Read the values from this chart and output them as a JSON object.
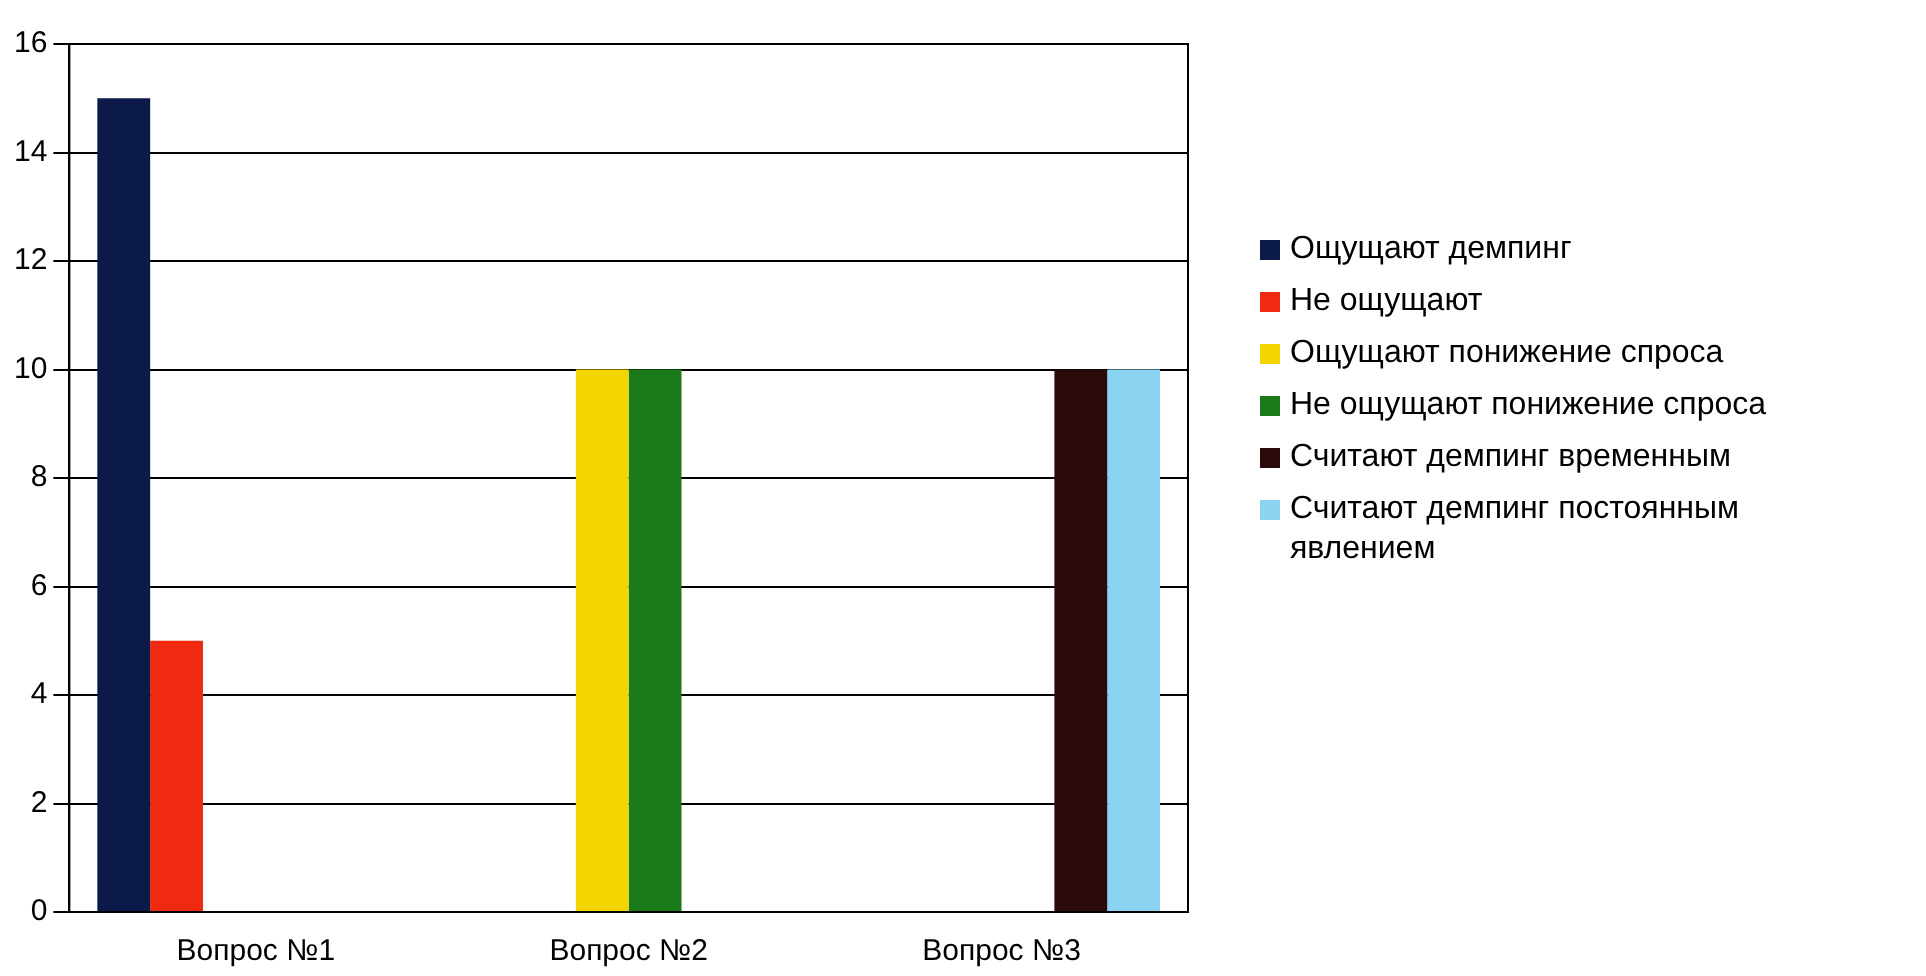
{
  "chart_data": {
    "type": "bar",
    "categories": [
      "Вопрос №1",
      "Вопрос №2",
      "Вопрос №3"
    ],
    "series": [
      {
        "name": "Ощущают демпинг",
        "color": "#0c1a4a",
        "values": [
          15,
          null,
          null
        ]
      },
      {
        "name": "Не ощущают",
        "color": "#f02a10",
        "values": [
          5,
          null,
          null
        ]
      },
      {
        "name": "Ощущают понижение спроса",
        "color": "#f2d400",
        "values": [
          null,
          10,
          null
        ]
      },
      {
        "name": "Не ощущают понижение спроса",
        "color": "#1a7a1a",
        "values": [
          null,
          10,
          null
        ]
      },
      {
        "name": "Считают демпинг временным",
        "color": "#2a0a0a",
        "values": [
          null,
          null,
          10
        ]
      },
      {
        "name": "Считают демпинг постоянным явлением",
        "color": "#8ad4f2",
        "values": [
          null,
          null,
          10
        ]
      }
    ],
    "ylim": [
      0,
      16
    ],
    "yticks": [
      0,
      2,
      4,
      6,
      8,
      10,
      12,
      14,
      16
    ],
    "grid": "y",
    "legend": "right"
  }
}
